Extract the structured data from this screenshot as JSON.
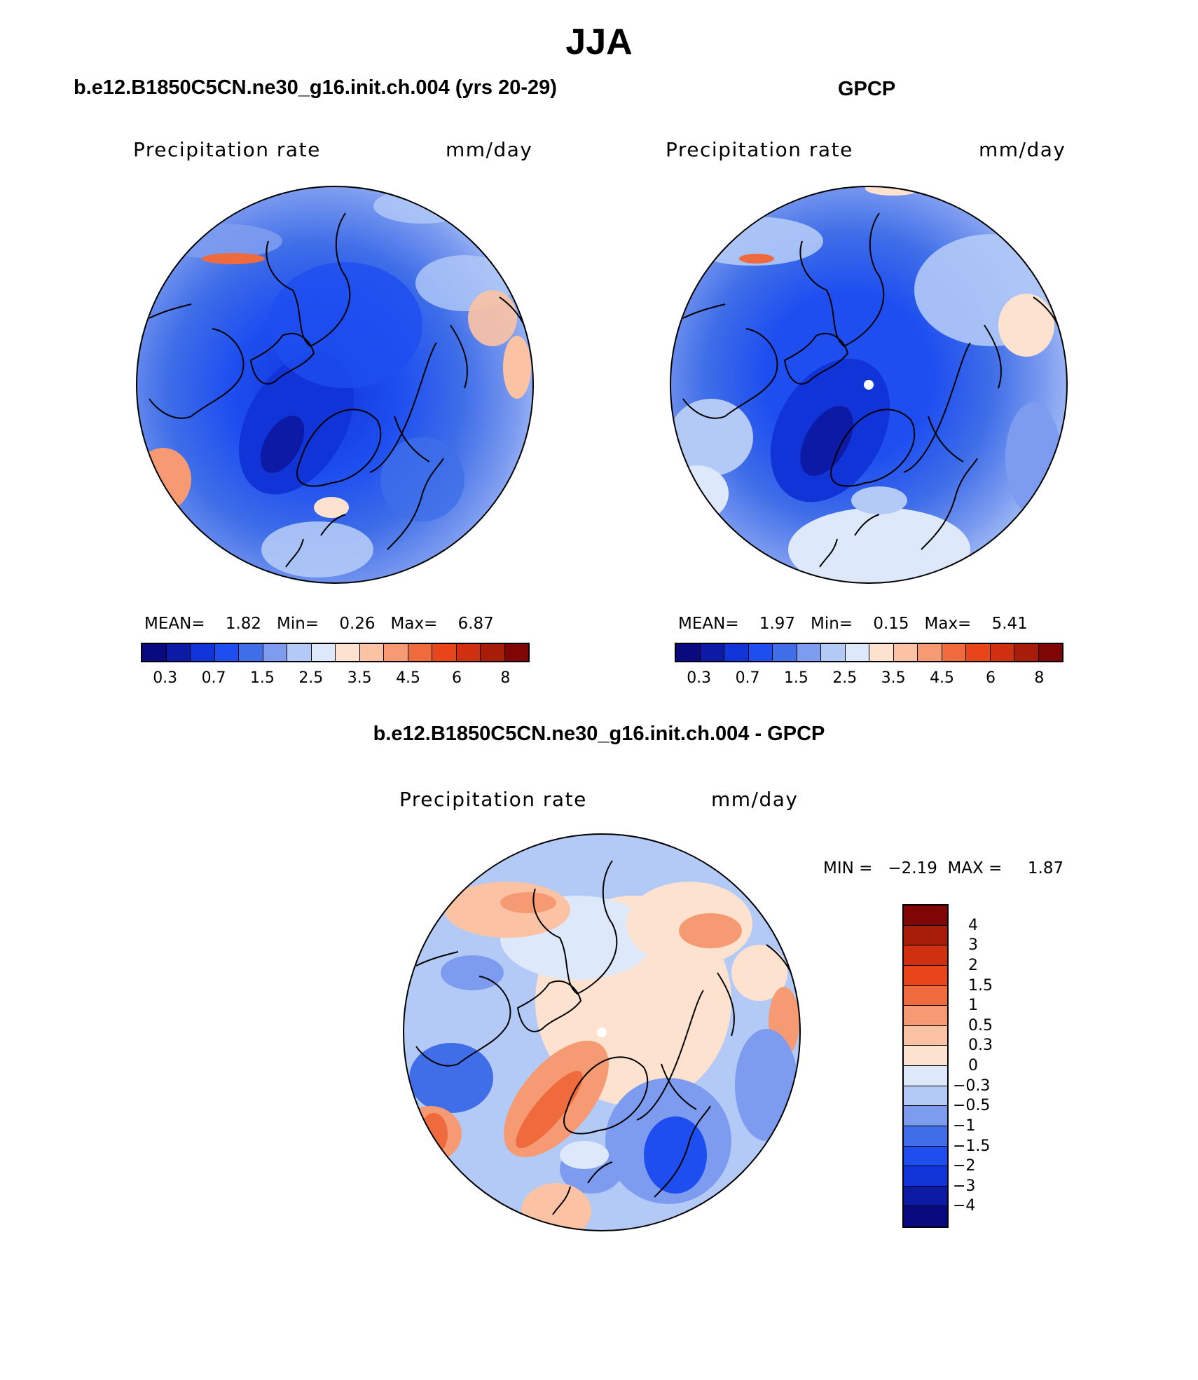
{
  "figure": {
    "title": "JJA"
  },
  "panels": {
    "model": {
      "title": "b.e12.B1850C5CN.ne30_g16.init.ch.004 (yrs 20-29)",
      "variable": "Precipitation rate",
      "units": "mm/day",
      "stats": {
        "mean_label": "MEAN=",
        "mean": "1.82",
        "min_label": "Min=",
        "min": "0.26",
        "max_label": "Max=",
        "max": "6.87"
      }
    },
    "obs": {
      "title": "GPCP",
      "variable": "Precipitation rate",
      "units": "mm/day",
      "stats": {
        "mean_label": "MEAN=",
        "mean": "1.97",
        "min_label": "Min=",
        "min": "0.15",
        "max_label": "Max=",
        "max": "5.41"
      }
    },
    "diff": {
      "title": "b.e12.B1850C5CN.ne30_g16.init.ch.004 - GPCP",
      "variable": "Precipitation rate",
      "units": "mm/day",
      "stats_text": "MIN =   −2.19  MAX =     1.87"
    }
  },
  "colorbar_abs": {
    "colors": [
      "#0a0a80",
      "#0c1aa6",
      "#1034d8",
      "#1e4ef0",
      "#3f6ee8",
      "#7d9cf0",
      "#b3caf7",
      "#dde9fb",
      "#fde2cf",
      "#fbc3a3",
      "#f59a72",
      "#ef6a3c",
      "#e8461a",
      "#d03010",
      "#a81d0a",
      "#800606"
    ],
    "tick_labels": [
      "0.3",
      "0.7",
      "1.5",
      "2.5",
      "3.5",
      "4.5",
      "6",
      "8"
    ]
  },
  "colorbar_diff": {
    "colors": [
      "#800606",
      "#a81d0a",
      "#d03010",
      "#e8461a",
      "#ef6a3c",
      "#f59a72",
      "#fbc3a3",
      "#fde2cf",
      "#dde9fb",
      "#b3caf7",
      "#7d9cf0",
      "#3f6ee8",
      "#1e4ef0",
      "#1034d8",
      "#0c1aa6",
      "#0a0a80"
    ],
    "labels": [
      "4",
      "3",
      "2",
      "1.5",
      "1",
      "0.5",
      "0.3",
      "0",
      "−0.3",
      "−0.5",
      "−1",
      "−1.5",
      "−2",
      "−3",
      "−4"
    ]
  }
}
